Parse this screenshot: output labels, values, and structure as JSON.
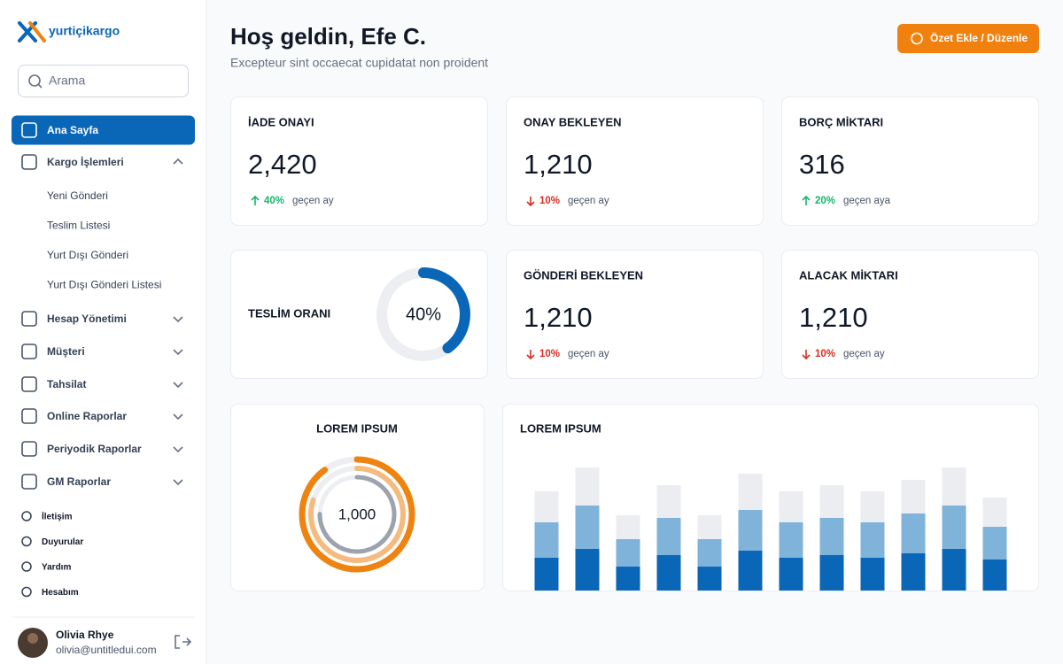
{
  "brand": "yurtiçikargo",
  "search_placeholder": "Arama",
  "nav": {
    "main": [
      {
        "label": "Ana Sayfa",
        "active": true
      },
      {
        "label": "Kargo İşlemleri",
        "expanded": true
      },
      {
        "label": "Hesap Yönetimi"
      },
      {
        "label": "Müşteri"
      },
      {
        "label": "Tahsilat"
      },
      {
        "label": "Online Raporlar"
      },
      {
        "label": "Periyodik Raporlar"
      },
      {
        "label": "GM Raporlar"
      }
    ],
    "sub": [
      "Yeni Gönderi",
      "Teslim Listesi",
      "Yurt Dışı Gönderi",
      "Yurt Dışı Gönderi Listesi"
    ],
    "footer": [
      "İletişim",
      "Duyurular",
      "Yardım",
      "Hesabım"
    ]
  },
  "user": {
    "name": "Olivia Rhye",
    "email": "olivia@untitledui.com"
  },
  "header": {
    "title": "Hoş geldin, Efe C.",
    "subtitle": "Excepteur sint occaecat cupidatat non proident",
    "button": "Özet Ekle / Düzenle"
  },
  "stats": [
    {
      "label": "İADE ONAYI",
      "value": "2,420",
      "change": "40%",
      "period": "geçen ay",
      "trend": "up"
    },
    {
      "label": "ONAY BEKLEYEN",
      "value": "1,210",
      "change": "10%",
      "period": "geçen ay",
      "trend": "down"
    },
    {
      "label": "BORÇ MİKTARI",
      "value": "316",
      "change": "20%",
      "period": "geçen aya",
      "trend": "up"
    },
    {
      "label": "GÖNDERİ BEKLEYEN",
      "value": "1,210",
      "change": "10%",
      "period": "geçen ay",
      "trend": "down"
    },
    {
      "label": "ALACAK MİKTARI",
      "value": "1,210",
      "change": "10%",
      "period": "geçen ay",
      "trend": "down"
    }
  ],
  "delivery_rate": {
    "label": "TESLİM ORANI",
    "value": {
      "value": 40,
      "label": "40%"
    },
    "color": "#0a66b7"
  },
  "rings_chart": {
    "type": "radial",
    "title": "LOREM IPSUM",
    "center_label": "1,000",
    "series": [
      {
        "color": "#ee8310",
        "value": 90
      },
      {
        "color": "#f5bb7e",
        "value": 80
      },
      {
        "color": "#9ca3af",
        "value": 75
      }
    ]
  },
  "bar_chart": {
    "type": "bar",
    "title": "LOREM IPSUM",
    "series": [
      {
        "color": "#0a66b7",
        "values": [
          37,
          47,
          27,
          40,
          27,
          45,
          37,
          40,
          37,
          42,
          47,
          35
        ]
      },
      {
        "color": "#7fb3da",
        "values": [
          40,
          49,
          31,
          42,
          31,
          46,
          40,
          42,
          40,
          45,
          49,
          37
        ]
      },
      {
        "color": "#ebedf1",
        "values": [
          35,
          43,
          27,
          37,
          27,
          41,
          35,
          37,
          35,
          38,
          43,
          33
        ]
      }
    ]
  }
}
